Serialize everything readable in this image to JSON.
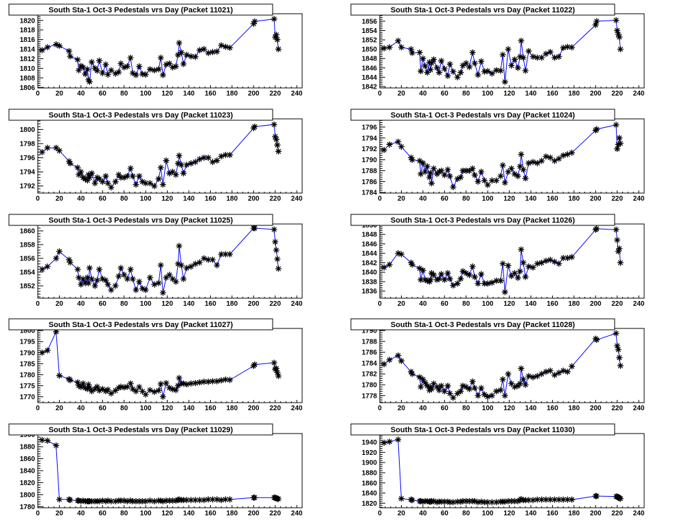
{
  "chart_data": [
    {
      "type": "line",
      "title": "South Sta-1 Oct-3 Pedestals vrs Day (Packet 11021)",
      "xlim": [
        0,
        245
      ],
      "ylim": [
        1805.9,
        1821.4
      ],
      "xticks": [
        0,
        20,
        40,
        60,
        80,
        100,
        120,
        140,
        160,
        180,
        200,
        220,
        240
      ],
      "yticks": [
        1806,
        1808,
        1810,
        1812,
        1814,
        1816,
        1818,
        1820
      ],
      "y": [
        1813.8,
        1814.4,
        1815.0,
        1814.7,
        1813.6,
        1812.5,
        1811.8,
        1809.6,
        1810.5,
        1810.2,
        1808.8,
        1809.8,
        1807.6,
        1807.2,
        1811.3,
        1810.0,
        1809.5,
        1811.6,
        1809.0,
        1810.8,
        1808.7,
        1809.6,
        1808.9,
        1809.2,
        1811.0,
        1810.2,
        1810.4,
        1812.2,
        1809.0,
        1808.6,
        1810.4,
        1808.8,
        1808.7,
        1809.8,
        1809.6,
        1809.8,
        1812.2,
        1808.6,
        1810.8,
        1811.0,
        1810.2,
        1810.4,
        1812.8,
        1815.3,
        1813.3,
        1810.9,
        1812.8,
        1812.5,
        1812.4,
        1813.8,
        1814.0,
        1813.2,
        1813.4,
        1813.5,
        1814.8,
        1814.5,
        1814.3,
        1819.3,
        1819.8,
        1820.3,
        1816.5,
        1817.0,
        1816.0,
        1814.0
      ]
    },
    {
      "type": "line",
      "title": "South Sta-1 Oct-3 Pedestals vrs Day (Packet 11022)",
      "xlim": [
        0,
        245
      ],
      "ylim": [
        1841.7,
        1857.6
      ],
      "xticks": [
        0,
        20,
        40,
        60,
        80,
        100,
        120,
        140,
        160,
        180,
        200,
        220,
        240
      ],
      "yticks": [
        1842,
        1844,
        1846,
        1848,
        1850,
        1852,
        1854,
        1856
      ],
      "y": [
        1850.2,
        1850.4,
        1851.8,
        1850.4,
        1850.0,
        1849.2,
        1849.3,
        1845.3,
        1848,
        1846.4,
        1845,
        1847.2,
        1845.6,
        1847,
        1847.8,
        1846,
        1845,
        1847.5,
        1845.8,
        1844.3,
        1846.8,
        1845.2,
        1844,
        1845,
        1846.5,
        1847,
        1846.2,
        1849.3,
        1847,
        1844.5,
        1847.4,
        1845.2,
        1845.3,
        1844.8,
        1845.5,
        1845.4,
        1848.8,
        1843,
        1850,
        1846.5,
        1847.8,
        1846,
        1848.4,
        1851.8,
        1848.2,
        1845.4,
        1849.6,
        1848.4,
        1848.2,
        1848.2,
        1849,
        1849.4,
        1848.2,
        1848.4,
        1850.3,
        1850.5,
        1850.4,
        1855.2,
        1856,
        1856.2,
        1854,
        1853.2,
        1852.6,
        1850
      ]
    },
    {
      "type": "line",
      "title": "South Sta-1 Oct-3 Pedestals vrs Day (Packet 11023)",
      "xlim": [
        0,
        245
      ],
      "ylim": [
        1791.0,
        1801.5
      ],
      "xticks": [
        0,
        20,
        40,
        60,
        80,
        100,
        120,
        140,
        160,
        180,
        200,
        220,
        240
      ],
      "yticks": [
        1792,
        1794,
        1796,
        1798,
        1800
      ],
      "y": [
        1796.8,
        1797.4,
        1797.4,
        1797,
        1795.5,
        1795.2,
        1794.6,
        1793.6,
        1794,
        1793.2,
        1793,
        1792.8,
        1793.6,
        1793.2,
        1793.8,
        1792.4,
        1793.2,
        1793,
        1792.6,
        1793.4,
        1792.4,
        1791.8,
        1792.6,
        1793.6,
        1793.2,
        1793.2,
        1793.4,
        1794.5,
        1793.4,
        1792.2,
        1793.4,
        1792.6,
        1792.4,
        1792.4,
        1792,
        1793,
        1794.6,
        1792.2,
        1795.6,
        1793.8,
        1794,
        1793.6,
        1795.2,
        1796.3,
        1795,
        1793.8,
        1795,
        1795.2,
        1795.4,
        1795.8,
        1796,
        1796,
        1795.4,
        1795.6,
        1796.2,
        1796.4,
        1796.4,
        1800.2,
        1800.4,
        1800.7,
        1799,
        1798.6,
        1797.8,
        1796.9
      ]
    },
    {
      "type": "line",
      "title": "South Sta-1 Oct-3 Pedestals vrs Day (Packet 11024)",
      "xlim": [
        0,
        245
      ],
      "ylim": [
        1783.9,
        1797.5
      ],
      "xticks": [
        0,
        20,
        40,
        60,
        80,
        100,
        120,
        140,
        160,
        180,
        200,
        220,
        240
      ],
      "yticks": [
        1784,
        1786,
        1788,
        1790,
        1792,
        1794,
        1796
      ],
      "y": [
        1791.8,
        1792.8,
        1793.3,
        1792.4,
        1790.4,
        1790,
        1789.8,
        1787.4,
        1789.4,
        1787.8,
        1788.8,
        1786.8,
        1787.6,
        1785.7,
        1788.4,
        1787.4,
        1787.8,
        1788,
        1787.2,
        1788.2,
        1787,
        1785,
        1786.5,
        1786.8,
        1788,
        1788,
        1788,
        1788.4,
        1787.2,
        1786,
        1787.8,
        1786.2,
        1785.4,
        1786.2,
        1786.2,
        1787,
        1789,
        1785.8,
        1787.8,
        1788.4,
        1787.4,
        1787,
        1788.8,
        1791,
        1788.2,
        1786.6,
        1789.4,
        1789.6,
        1789.4,
        1789.8,
        1790.6,
        1790.4,
        1789.8,
        1790.2,
        1790.8,
        1791,
        1791.3,
        1795.4,
        1795.6,
        1796.4,
        1792,
        1792.8,
        1794,
        1793
      ]
    },
    {
      "type": "line",
      "title": "South Sta-1 Oct-3 Pedestals vrs Day (Packet 11025)",
      "xlim": [
        0,
        245
      ],
      "ylim": [
        1850.2,
        1861.0
      ],
      "xticks": [
        0,
        20,
        40,
        60,
        80,
        100,
        120,
        140,
        160,
        180,
        200,
        220,
        240
      ],
      "yticks": [
        1852,
        1854,
        1856,
        1858,
        1860
      ],
      "y": [
        1854.4,
        1854.8,
        1856,
        1857,
        1855.8,
        1855.4,
        1854.4,
        1853.2,
        1852.2,
        1853,
        1852.4,
        1853.2,
        1852.4,
        1854.6,
        1853,
        1852,
        1852.8,
        1854.4,
        1853,
        1852.8,
        1852.2,
        1851.4,
        1852,
        1853.4,
        1854.6,
        1853.6,
        1853,
        1854.4,
        1853,
        1851.4,
        1852.6,
        1851.6,
        1851.4,
        1853.2,
        1852.2,
        1852.4,
        1855,
        1851,
        1853.2,
        1853.6,
        1853,
        1852.6,
        1855.2,
        1857.8,
        1855,
        1853,
        1854.6,
        1854.8,
        1855.2,
        1855.4,
        1856,
        1855.8,
        1855.8,
        1855,
        1856.6,
        1856.6,
        1856.6,
        1860.4,
        1860.4,
        1860.2,
        1858.4,
        1857.2,
        1855.9,
        1854.5
      ]
    },
    {
      "type": "line",
      "title": "South Sta-1 Oct-3 Pedestals vrs Day (Packet 11026)",
      "xlim": [
        0,
        245
      ],
      "ylim": [
        1834.5,
        1850.2
      ],
      "xticks": [
        0,
        20,
        40,
        60,
        80,
        100,
        120,
        140,
        160,
        180,
        200,
        220,
        240
      ],
      "yticks": [
        1836,
        1838,
        1840,
        1842,
        1844,
        1846,
        1848,
        1850
      ],
      "y": [
        1841,
        1841.6,
        1844,
        1843.8,
        1842,
        1841.6,
        1840.8,
        1838.4,
        1840.4,
        1838.4,
        1838.2,
        1838,
        1838.4,
        1839.8,
        1839.4,
        1838.4,
        1838.6,
        1839.6,
        1838.4,
        1839.8,
        1838.6,
        1837.2,
        1837.6,
        1838.6,
        1840.2,
        1839.8,
        1839.4,
        1841.2,
        1839,
        1837.6,
        1839.6,
        1837.6,
        1837.6,
        1837.8,
        1838.2,
        1838.2,
        1841.8,
        1835.8,
        1841.4,
        1839.2,
        1839.8,
        1838.8,
        1840.2,
        1844.8,
        1842,
        1839,
        1841.2,
        1841,
        1841.8,
        1842,
        1842.4,
        1842.6,
        1842.2,
        1841.8,
        1843,
        1843,
        1843.2,
        1849,
        1849.2,
        1849,
        1846.8,
        1844.4,
        1845,
        1842
      ]
    },
    {
      "type": "line",
      "title": "South Sta-1 Oct-3 Pedestals vrs Day (Packet 11027)",
      "xlim": [
        0,
        245
      ],
      "ylim": [
        1767.3,
        1801.0
      ],
      "xticks": [
        0,
        20,
        40,
        60,
        80,
        100,
        120,
        140,
        160,
        180,
        200,
        220,
        240
      ],
      "yticks": [
        1770,
        1775,
        1780,
        1785,
        1790,
        1795,
        1800
      ],
      "y": [
        1790,
        1791,
        1799.5,
        1779.6,
        1778,
        1777.5,
        1776.5,
        1775,
        1774.4,
        1776,
        1774,
        1773.5,
        1775.5,
        1774,
        1772.5,
        1773.5,
        1774.5,
        1772.8,
        1773.5,
        1772.5,
        1773.2,
        1771.5,
        1772.8,
        1774,
        1774.5,
        1774.2,
        1774.5,
        1776,
        1773.5,
        1772.5,
        1774.4,
        1772.4,
        1771,
        1773,
        1772.2,
        1772.8,
        1775.8,
        1770,
        1776.2,
        1774,
        1773.4,
        1773,
        1775,
        1778.5,
        1776,
        1776,
        1775.6,
        1776,
        1776.2,
        1776.5,
        1776.8,
        1776.8,
        1777,
        1777,
        1777.4,
        1777.8,
        1777.6,
        1784,
        1784.6,
        1785.4,
        1782.5,
        1782.8,
        1781,
        1779.4
      ]
    },
    {
      "type": "line",
      "title": "South Sta-1 Oct-3 Pedestals vrs Day (Packet 11028)",
      "xlim": [
        0,
        245
      ],
      "ylim": [
        1776.7,
        1790.4
      ],
      "xticks": [
        0,
        20,
        40,
        60,
        80,
        100,
        120,
        140,
        160,
        180,
        200,
        220,
        240
      ],
      "yticks": [
        1778,
        1780,
        1782,
        1784,
        1786,
        1788,
        1790
      ],
      "y": [
        1783.8,
        1784.6,
        1785.4,
        1784.4,
        1782.4,
        1782,
        1781.4,
        1779.6,
        1781,
        1780.4,
        1779.8,
        1779,
        1779.6,
        1779.2,
        1780.2,
        1779.6,
        1779,
        1779.8,
        1778.8,
        1779.8,
        1778.4,
        1777.6,
        1778.4,
        1778.8,
        1779.8,
        1779.6,
        1779.2,
        1780.6,
        1779.4,
        1778,
        1779.4,
        1778.2,
        1777.8,
        1778,
        1778.8,
        1779,
        1781,
        1778,
        1782,
        1780.2,
        1779.6,
        1779.8,
        1780.2,
        1783,
        1781,
        1780,
        1781.6,
        1781.4,
        1781.6,
        1782,
        1782.4,
        1782.6,
        1781.8,
        1782.2,
        1782.6,
        1782.4,
        1783.4,
        1788.5,
        1788.3,
        1789.5,
        1787.2,
        1786.5,
        1785,
        1783.5
      ]
    },
    {
      "type": "line",
      "title": "South Sta-1 Oct-3 Pedestals vrs Day (Packet 11029)",
      "xlim": [
        0,
        245
      ],
      "ylim": [
        1778.1,
        1901.9
      ],
      "xticks": [
        0,
        20,
        40,
        60,
        80,
        100,
        120,
        140,
        160,
        180,
        200,
        220,
        240
      ],
      "yticks": [
        1780,
        1800,
        1820,
        1840,
        1860,
        1880,
        1900
      ],
      "y": [
        1891,
        1890,
        1882,
        1792,
        1792,
        1791,
        1790,
        1790,
        1789,
        1790,
        1789,
        1789,
        1789,
        1789,
        1789,
        1789,
        1789,
        1789,
        1790,
        1789,
        1790,
        1789,
        1789,
        1790,
        1790,
        1790,
        1789,
        1790,
        1789,
        1789,
        1789,
        1789,
        1789,
        1790,
        1789,
        1790,
        1790,
        1789,
        1790,
        1790,
        1790,
        1790,
        1791,
        1792,
        1791,
        1791,
        1791,
        1791,
        1791,
        1791,
        1791,
        1792,
        1792,
        1792,
        1791,
        1792,
        1792,
        1795,
        1795,
        1795,
        1795,
        1794,
        1793,
        1793
      ]
    },
    {
      "type": "line",
      "title": "South Sta-1 Oct-3 Pedestals vrs Day (Packet 11030)",
      "xlim": [
        0,
        245
      ],
      "ylim": [
        1811,
        1957
      ],
      "xticks": [
        0,
        20,
        40,
        60,
        80,
        100,
        120,
        140,
        160,
        180,
        200,
        220,
        240
      ],
      "yticks": [
        1820,
        1840,
        1860,
        1880,
        1900,
        1920,
        1940
      ],
      "y": [
        1939,
        1941,
        1945,
        1829,
        1827,
        1826,
        1824,
        1824,
        1823,
        1824,
        1824,
        1823,
        1823,
        1824,
        1824,
        1822,
        1823,
        1823,
        1823,
        1823,
        1822,
        1822,
        1823,
        1823,
        1824,
        1824,
        1824,
        1824,
        1824,
        1822,
        1823,
        1822,
        1822,
        1822,
        1822,
        1823,
        1823,
        1823,
        1824,
        1824,
        1824,
        1824,
        1826,
        1828,
        1826,
        1826,
        1826,
        1826,
        1827,
        1827,
        1827,
        1827,
        1827,
        1827,
        1827,
        1827,
        1827,
        1834,
        1834,
        1833,
        1833,
        1832,
        1830,
        1829
      ]
    }
  ],
  "x_days": [
    4,
    9,
    17,
    20,
    29,
    30,
    37,
    38,
    40,
    42,
    44,
    46,
    47,
    48,
    50,
    53,
    55,
    57,
    60,
    63,
    65,
    68,
    72,
    75,
    77,
    80,
    83,
    86,
    88,
    91,
    94,
    97,
    100,
    104,
    108,
    112,
    114,
    116,
    119,
    122,
    125,
    128,
    130,
    131,
    133,
    135,
    138,
    142,
    146,
    150,
    154,
    158,
    162,
    166,
    170,
    174,
    178,
    200,
    201,
    219,
    220,
    221,
    222,
    223
  ],
  "colors": {
    "line": "#0000ff",
    "marker": "#000000",
    "frame": "#000000"
  }
}
